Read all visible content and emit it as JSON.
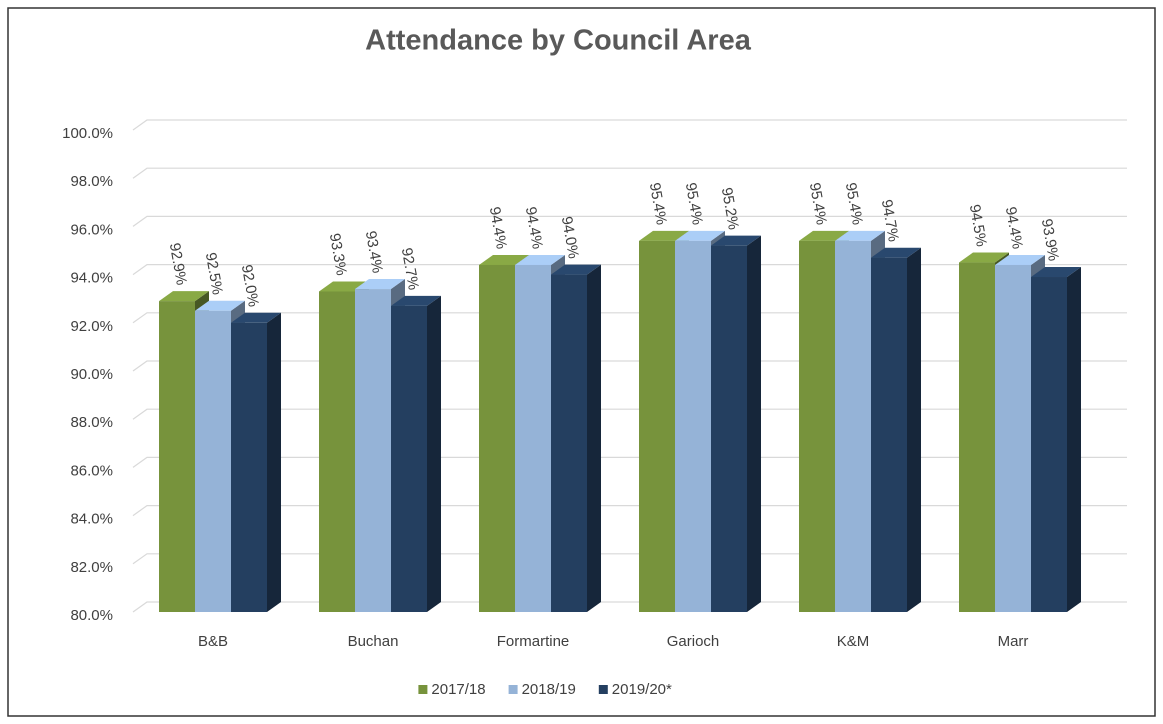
{
  "chart_data": {
    "type": "bar3d",
    "title": "Attendance by Council Area",
    "categories": [
      "B&B",
      "Buchan",
      "Formartine",
      "Garioch",
      "K&M",
      "Marr"
    ],
    "series": [
      {
        "name": "2017/18",
        "color": "#77933c",
        "values": [
          92.9,
          93.3,
          94.4,
          95.4,
          95.4,
          94.5
        ],
        "value_labels": [
          "92.9%",
          "93.3%",
          "94.4%",
          "95.4%",
          "95.4%",
          "94.5%"
        ]
      },
      {
        "name": "2018/19",
        "color": "#95b3d7",
        "values": [
          92.5,
          93.4,
          94.4,
          95.4,
          95.4,
          94.4
        ],
        "value_labels": [
          "92.5%",
          "93.4%",
          "94.4%",
          "95.4%",
          "95.4%",
          "94.4%"
        ]
      },
      {
        "name": "2019/20*",
        "color": "#243f60",
        "values": [
          92.0,
          92.7,
          94.0,
          95.2,
          94.7,
          93.9
        ],
        "value_labels": [
          "92.0%",
          "92.7%",
          "94.0%",
          "95.2%",
          "94.7%",
          "93.9%"
        ]
      }
    ],
    "ylim": [
      80,
      100
    ],
    "yticks": [
      {
        "value": 80,
        "label": "80.0%"
      },
      {
        "value": 82,
        "label": "82.0%"
      },
      {
        "value": 84,
        "label": "84.0%"
      },
      {
        "value": 86,
        "label": "86.0%"
      },
      {
        "value": 88,
        "label": "88.0%"
      },
      {
        "value": 90,
        "label": "90.0%"
      },
      {
        "value": 92,
        "label": "92.0%"
      },
      {
        "value": 94,
        "label": "94.0%"
      },
      {
        "value": 96,
        "label": "96.0%"
      },
      {
        "value": 98,
        "label": "98.0%"
      },
      {
        "value": 100,
        "label": "100.0%"
      }
    ],
    "grid": true,
    "legend": "bottom"
  }
}
